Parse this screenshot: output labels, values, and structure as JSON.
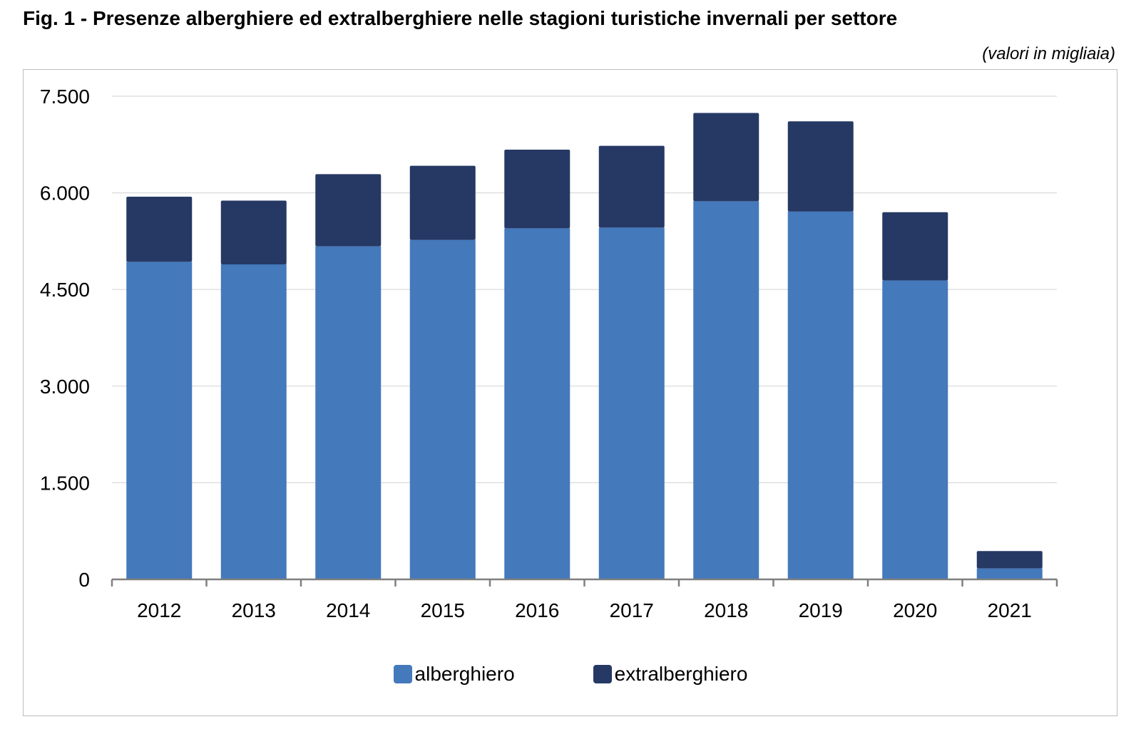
{
  "header": {
    "title": "Fig. 1 - Presenze alberghiere ed extralberghiere nelle stagioni turistiche invernali per settore",
    "unit_note": "(valori in migliaia)"
  },
  "chart_data": {
    "type": "bar",
    "stacked": true,
    "categories": [
      "2012",
      "2013",
      "2014",
      "2015",
      "2016",
      "2017",
      "2018",
      "2019",
      "2020",
      "2021"
    ],
    "series": [
      {
        "name": "alberghiero",
        "color": "#4479bb",
        "values": [
          4930,
          4890,
          5170,
          5270,
          5450,
          5460,
          5870,
          5710,
          4640,
          170
        ]
      },
      {
        "name": "extralberghiero",
        "color": "#263964",
        "values": [
          1010,
          990,
          1120,
          1150,
          1220,
          1270,
          1370,
          1400,
          1060,
          270
        ]
      }
    ],
    "yticks": [
      "0",
      "1.500",
      "3.000",
      "4.500",
      "6.000",
      "7.500"
    ],
    "ylim": [
      0,
      7500
    ],
    "grid": true,
    "legend_position": "bottom"
  }
}
